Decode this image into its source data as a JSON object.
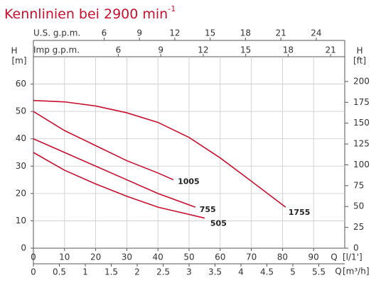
{
  "chart_data": {
    "type": "line",
    "title": "Kennlinien bei 2900 min",
    "title_superscript": "-1",
    "y_label": "H",
    "y_unit": "[m]",
    "y2_label": "H",
    "y2_unit": "[ft]",
    "x_label": "Q",
    "x_unit": "[l/1']",
    "x2_label": "Q",
    "x2_unit": "[m³/h]",
    "top_label": "U.S. g.p.m.",
    "top2_label": "Imp g.p.m.",
    "xlim": [
      0,
      100
    ],
    "xticks": [
      0,
      10,
      20,
      30,
      40,
      50,
      60,
      70,
      80,
      90
    ],
    "x2lim": [
      0,
      6
    ],
    "x2ticks": [
      0,
      0.5,
      1,
      1.5,
      2,
      2.5,
      3,
      3.5,
      4,
      4.5,
      5,
      5.5
    ],
    "toplim": [
      0,
      26.42
    ],
    "topticks": [
      6,
      9,
      12,
      15,
      18,
      21,
      24
    ],
    "top2lim": [
      0,
      22.0
    ],
    "top2ticks": [
      6,
      9,
      12,
      15,
      18,
      21
    ],
    "ylim": [
      0,
      70
    ],
    "yticks": [
      0,
      10,
      20,
      30,
      40,
      50,
      60
    ],
    "y2lim": [
      0,
      229.7
    ],
    "y2ticks": [
      0,
      25,
      50,
      75,
      100,
      125,
      150,
      175,
      200
    ],
    "grid": true,
    "color": "#c8102e",
    "series": [
      {
        "name": "1755",
        "x": [
          0,
          10,
          20,
          30,
          40,
          50,
          60,
          70,
          81
        ],
        "values": [
          54,
          53.5,
          52,
          49.5,
          46,
          40.5,
          33,
          24.5,
          15
        ]
      },
      {
        "name": "1005",
        "x": [
          0,
          10,
          20,
          30,
          40,
          45
        ],
        "values": [
          50,
          43,
          37.5,
          32,
          27.5,
          25
        ]
      },
      {
        "name": "755",
        "x": [
          0,
          10,
          20,
          30,
          40,
          52
        ],
        "values": [
          40,
          35,
          30,
          25,
          20,
          15
        ]
      },
      {
        "name": "505",
        "x": [
          0,
          10,
          20,
          30,
          40,
          55
        ],
        "values": [
          35,
          28.5,
          23.5,
          19,
          15,
          11
        ]
      }
    ]
  }
}
